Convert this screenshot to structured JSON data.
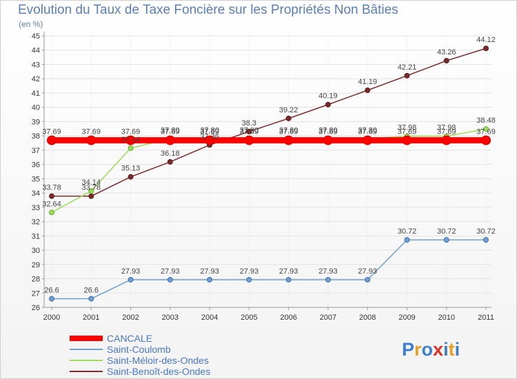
{
  "title": "Evolution du Taux de Taxe Foncière sur les Propriétés Non Bâties",
  "unit_label": "(en %)",
  "logo": [
    "P",
    "r",
    "o",
    "x",
    "i",
    "t",
    "i"
  ],
  "logo_colors": [
    "#3a7fd0",
    "#e8a020",
    "#3a7fd0",
    "#e03020",
    "#3a7fd0",
    "#e8a020",
    "#3a7fd0"
  ],
  "chart_data": {
    "type": "line",
    "title": "Evolution du Taux de Taxe Foncière sur les Propriétés Non Bâties",
    "ylabel": "(en %)",
    "xlabel": "",
    "ylim": [
      26,
      45
    ],
    "yticks": [
      26,
      27,
      28,
      29,
      30,
      31,
      32,
      33,
      34,
      35,
      36,
      37,
      38,
      39,
      40,
      41,
      42,
      43,
      44,
      45
    ],
    "categories": [
      "2000",
      "2001",
      "2002",
      "2003",
      "2004",
      "2005",
      "2006",
      "2007",
      "2008",
      "2009",
      "2010",
      "2011"
    ],
    "legend_position": "bottom-left",
    "series": [
      {
        "name": "CANCALE",
        "color": "#ff0000",
        "values": [
          37.69,
          37.69,
          37.69,
          37.69,
          37.69,
          37.69,
          37.69,
          37.69,
          37.69,
          37.69,
          37.69,
          37.69
        ],
        "labels": [
          "37.69",
          "37.69",
          "37.69",
          "37.69",
          "37.69",
          "37.69",
          "37.69",
          "37.69",
          "37.69",
          "37.69",
          "37.69",
          "37.69"
        ]
      },
      {
        "name": "Saint-Coulomb",
        "color": "#6fa0d0",
        "values": [
          26.6,
          26.6,
          27.93,
          27.93,
          27.93,
          27.93,
          27.93,
          27.93,
          27.93,
          30.72,
          30.72,
          30.72
        ],
        "labels": [
          "26.6",
          "26.6",
          "27.93",
          "27.93",
          "27.93",
          "27.93",
          "27.93",
          "27.93",
          "27.93",
          "30.72",
          "30.72",
          "30.72"
        ]
      },
      {
        "name": "Saint-Méloir-des-Ondes",
        "color": "#99dd55",
        "values": [
          32.64,
          34.14,
          37.14,
          37.8,
          37.8,
          37.8,
          37.8,
          37.8,
          37.8,
          37.98,
          37.98,
          38.48
        ],
        "labels": [
          "32.64",
          "34.14",
          "37.14",
          "37.80",
          "37.80",
          "37.80",
          "37.80",
          "37.80",
          "37.80",
          "37.98",
          "37.98",
          "38.48"
        ]
      },
      {
        "name": "Saint-Benoît-des-Ondes",
        "color": "#7a2a2a",
        "values": [
          33.78,
          33.78,
          35.13,
          36.18,
          37.36,
          38.3,
          39.22,
          40.19,
          41.19,
          42.21,
          43.26,
          44.12
        ],
        "labels": [
          "33.78",
          "33.78",
          "35.13",
          "36.18",
          "37.36",
          "38.3",
          "39.22",
          "40.19",
          "41.19",
          "42.21",
          "43.26",
          "44.12"
        ]
      }
    ]
  }
}
